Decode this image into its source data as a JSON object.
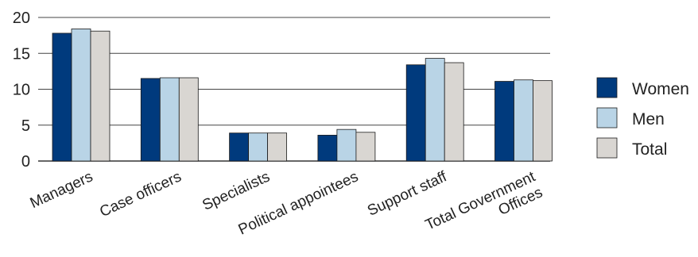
{
  "chart_data": {
    "type": "bar",
    "categories": [
      [
        "Managers"
      ],
      [
        "Case officers"
      ],
      [
        "Specialists"
      ],
      [
        "Political appointees"
      ],
      [
        "Support staff"
      ],
      [
        "Total Government",
        "Offices"
      ]
    ],
    "series": [
      {
        "name": "Women",
        "color": "#003a7d",
        "values": [
          17.8,
          11.5,
          3.9,
          3.6,
          13.4,
          11.1
        ]
      },
      {
        "name": "Men",
        "color": "#b9d4e6",
        "values": [
          18.4,
          11.6,
          3.9,
          4.4,
          14.3,
          11.3
        ]
      },
      {
        "name": "Total",
        "color": "#d9d6d2",
        "values": [
          18.1,
          11.6,
          3.9,
          4.0,
          13.7,
          11.2
        ]
      }
    ],
    "ylim": [
      0,
      20
    ],
    "yticks": [
      0,
      5,
      10,
      15,
      20
    ],
    "grid": true,
    "legend_position": "right",
    "title": "",
    "xlabel": "",
    "ylabel": ""
  }
}
